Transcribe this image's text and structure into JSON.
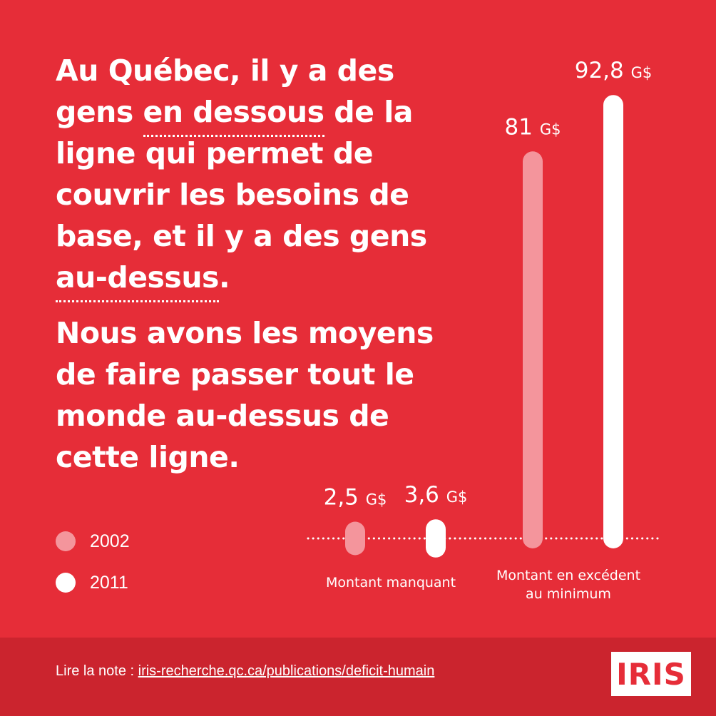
{
  "headline": {
    "p1_before": "Au Québec, il y a des gens ",
    "p1_underline1": "en dessous",
    "p1_middle": " de la ligne qui permet de couvrir les besoins de base, et il y a des gens ",
    "p1_underline2": "au-dessus",
    "p1_end": ".",
    "p2": "Nous avons les moyens de faire passer tout le monde au-dessus de cette ligne."
  },
  "legend": {
    "items": [
      {
        "label": "2002",
        "color": "#f4959c"
      },
      {
        "label": "2011",
        "color": "#ffffff"
      }
    ]
  },
  "chart_data": {
    "type": "bar",
    "unit": "G$",
    "categories": [
      "Montant manquant",
      "Montant en excédent au minimum"
    ],
    "series": [
      {
        "name": "2002",
        "color": "#f4959c",
        "values": [
          2.5,
          81
        ]
      },
      {
        "name": "2011",
        "color": "#ffffff",
        "values": [
          3.6,
          92.8
        ]
      }
    ],
    "value_labels": [
      {
        "number": "2,5",
        "unit": "G$"
      },
      {
        "number": "3,6",
        "unit": "G$"
      },
      {
        "number": "81",
        "unit": "G$"
      },
      {
        "number": "92,8",
        "unit": "G$"
      }
    ],
    "category_labels": [
      [
        "Montant manquant"
      ],
      [
        "Montant en excédent",
        "au minimum"
      ]
    ],
    "baseline": "dotted"
  },
  "footer": {
    "prefix": "Lire la note : ",
    "link": "iris-recherche.qc.ca/publications/deficit-humain",
    "logo": "IRIS"
  }
}
